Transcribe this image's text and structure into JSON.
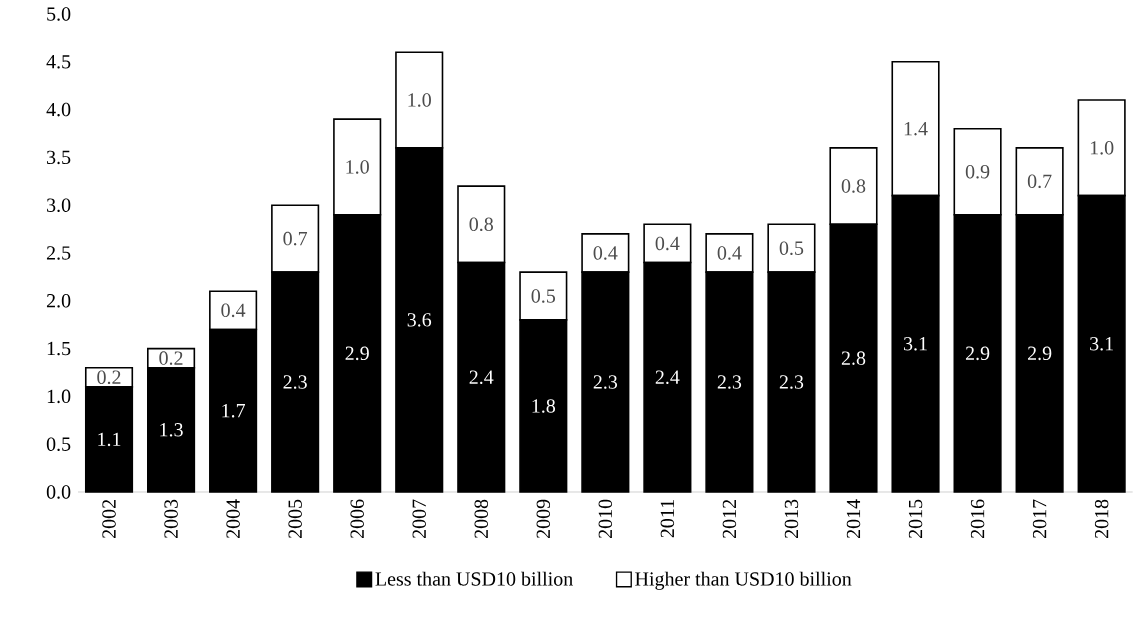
{
  "chart_data": {
    "type": "bar",
    "stacked": true,
    "categories": [
      "2002",
      "2003",
      "2004",
      "2005",
      "2006",
      "2007",
      "2008",
      "2009",
      "2010",
      "2011",
      "2012",
      "2013",
      "2014",
      "2015",
      "2016",
      "2017",
      "2018"
    ],
    "series": [
      {
        "name": "Less than USD10 billion",
        "color": "#000000",
        "values": [
          1.1,
          1.3,
          1.7,
          2.3,
          2.9,
          3.6,
          2.4,
          1.8,
          2.3,
          2.4,
          2.3,
          2.3,
          2.8,
          3.1,
          2.9,
          2.9,
          3.1
        ],
        "value_labels": [
          "1.1",
          "1.3",
          "1.7",
          "2.3",
          "2.9",
          "3.6",
          "2.4",
          "1.8",
          "2.3",
          "2.4",
          "2.3",
          "2.3",
          "2.8",
          "3.1",
          "2.9",
          "2.9",
          "3.1"
        ]
      },
      {
        "name": "Higher than USD10 billion",
        "color": "#ffffff",
        "values": [
          0.2,
          0.2,
          0.4,
          0.7,
          1.0,
          1.0,
          0.8,
          0.5,
          0.4,
          0.4,
          0.4,
          0.5,
          0.8,
          1.4,
          0.9,
          0.7,
          1.0
        ],
        "value_labels": [
          "0.2",
          "0.2",
          "0.4",
          "0.7",
          "1.0",
          "1.0",
          "0.8",
          "0.5",
          "0.4",
          "0.4",
          "0.4",
          "0.5",
          "0.8",
          "1.4",
          "0.9",
          "0.7",
          "1.0"
        ]
      }
    ],
    "ylim": [
      0,
      5
    ],
    "yticks": [
      {
        "value": 0,
        "label": "0.0"
      },
      {
        "value": 0.5,
        "label": "0.5"
      },
      {
        "value": 1,
        "label": "1.0"
      },
      {
        "value": 1.5,
        "label": "1.5"
      },
      {
        "value": 2,
        "label": "2.0"
      },
      {
        "value": 2.5,
        "label": "2.5"
      },
      {
        "value": 3,
        "label": "3.0"
      },
      {
        "value": 3.5,
        "label": "3.5"
      },
      {
        "value": 4,
        "label": "4.0"
      },
      {
        "value": 4.5,
        "label": "4.5"
      },
      {
        "value": 5,
        "label": "5.0"
      }
    ],
    "legend": "bottom",
    "grid": false
  }
}
